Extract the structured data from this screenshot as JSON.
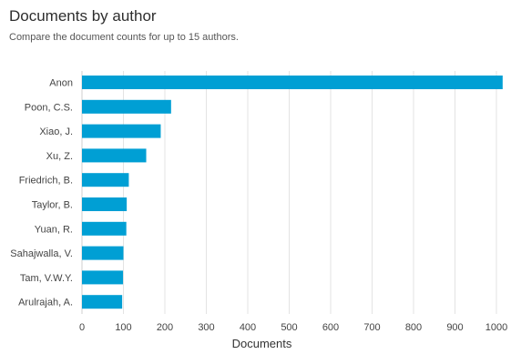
{
  "chart_data": {
    "type": "bar",
    "orientation": "horizontal",
    "title": "Documents by author",
    "subtitle": "Compare the document counts for up to 15 authors.",
    "xlabel": "Documents",
    "ylabel": "",
    "categories": [
      "Anon",
      "Poon, C.S.",
      "Xiao, J.",
      "Xu, Z.",
      "Friedrich, B.",
      "Taylor, B.",
      "Yuan, R.",
      "Sahajwalla, V.",
      "Tam, V.W.Y.",
      "Arulrajah, A."
    ],
    "values": [
      1015,
      215,
      190,
      155,
      113,
      108,
      107,
      100,
      99,
      97
    ],
    "xlim": [
      0,
      1000
    ],
    "xticks": [
      0,
      100,
      200,
      300,
      400,
      500,
      600,
      700,
      800,
      900,
      1000
    ],
    "grid": true,
    "bar_color": "#009fd4",
    "grid_color": "#e3e3e3"
  }
}
